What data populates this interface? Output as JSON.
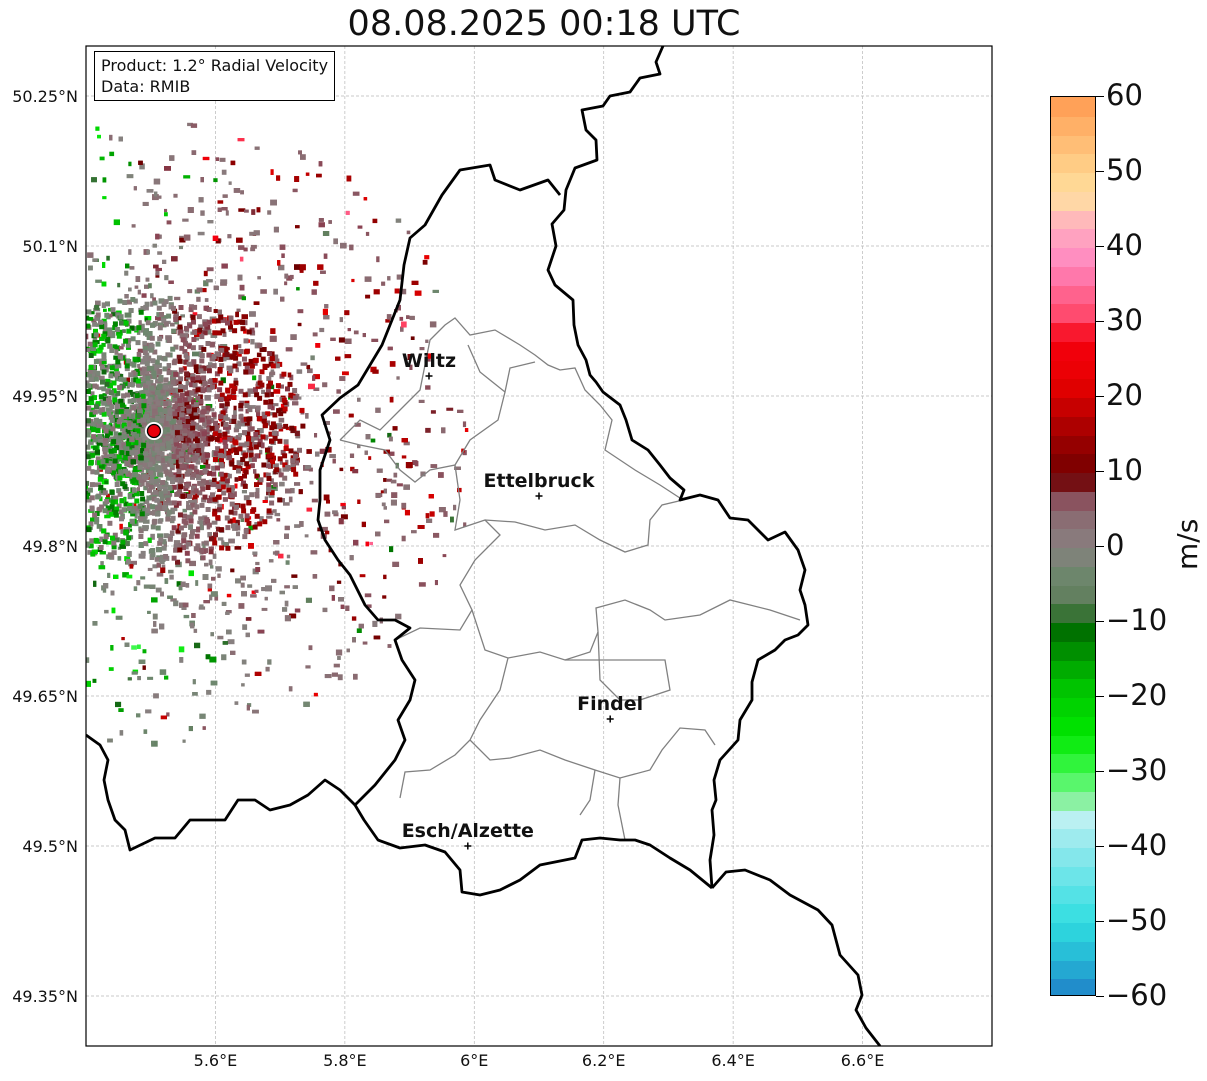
{
  "title": "08.08.2025 00:18 UTC",
  "info": {
    "product_line": "Product: 1.2° Radial Velocity",
    "data_line": "Data: RMIB"
  },
  "axes": {
    "lon_ticks": [
      "5.6°E",
      "5.8°E",
      "6°E",
      "6.2°E",
      "6.4°E",
      "6.6°E"
    ],
    "lat_ticks": [
      "50.25°N",
      "50.1°N",
      "49.95°N",
      "49.8°N",
      "49.65°N",
      "49.5°N",
      "49.35°N"
    ],
    "lon_values": [
      5.6,
      5.8,
      6.0,
      6.2,
      6.4,
      6.6
    ],
    "lat_values": [
      50.25,
      50.1,
      49.95,
      49.8,
      49.65,
      49.5,
      49.35
    ],
    "lon_range": [
      5.4,
      6.8
    ],
    "lat_range": [
      49.3,
      50.3
    ],
    "grid": true
  },
  "cities": [
    {
      "name": "Wiltz",
      "lon": 5.93,
      "lat": 49.97
    },
    {
      "name": "Ettelbruck",
      "lon": 6.1,
      "lat": 49.85
    },
    {
      "name": "Findel",
      "lon": 6.21,
      "lat": 49.627
    },
    {
      "name": "Esch/Alzette",
      "lon": 5.99,
      "lat": 49.5
    }
  ],
  "radar_site": {
    "lon": 5.505,
    "lat": 49.915,
    "color": "#e8000b"
  },
  "colorbar": {
    "unit": "m/s",
    "min": -60,
    "max": 60,
    "tick_labels": [
      "60",
      "50",
      "40",
      "30",
      "20",
      "10",
      "0",
      "−10",
      "−20",
      "−30",
      "−40",
      "−50",
      "−60"
    ],
    "tick_values": [
      60,
      50,
      40,
      30,
      20,
      10,
      0,
      -10,
      -20,
      -30,
      -40,
      -50,
      -60
    ]
  }
}
